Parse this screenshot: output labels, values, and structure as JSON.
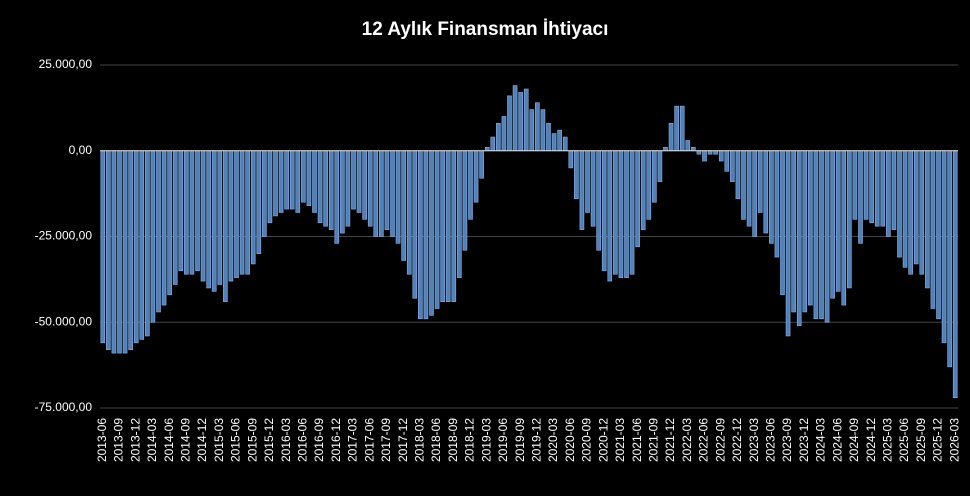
{
  "chart_data": {
    "type": "bar",
    "title": "12 Aylık Finansman İhtiyacı",
    "color": "#4f81bd",
    "grid": true,
    "ylim": [
      -75000,
      25000
    ],
    "yticks": [
      {
        "value": -75000,
        "label": "-75.000,00"
      },
      {
        "value": -50000,
        "label": "-50.000,00"
      },
      {
        "value": -25000,
        "label": "-25.000,00"
      },
      {
        "value": 0,
        "label": "0,00"
      },
      {
        "value": 25000,
        "label": "25.000,00"
      }
    ],
    "categories": [
      "2013-06",
      null,
      null,
      "2013-09",
      null,
      null,
      "2013-12",
      null,
      null,
      "2014-03",
      null,
      null,
      "2014-06",
      null,
      null,
      "2014-09",
      null,
      null,
      "2014-12",
      null,
      null,
      "2015-03",
      null,
      null,
      "2015-06",
      null,
      null,
      "2015-09",
      null,
      null,
      "2015-12",
      null,
      null,
      "2016-03",
      null,
      null,
      "2016-06",
      null,
      null,
      "2016-09",
      null,
      null,
      "2016-12",
      null,
      null,
      "2017-03",
      null,
      null,
      "2017-06",
      null,
      null,
      "2017-09",
      null,
      null,
      "2017-12",
      null,
      null,
      "2018-03",
      null,
      null,
      "2018-06",
      null,
      null,
      "2018-09",
      null,
      null,
      "2018-12",
      null,
      null,
      "2019-03",
      null,
      null,
      "2019-06",
      null,
      null,
      "2019-09",
      null,
      null,
      "2019-12",
      null,
      null,
      "2020-03",
      null,
      null,
      "2020-06",
      null,
      null,
      "2020-09",
      null,
      null,
      "2020-12",
      null,
      null,
      "2021-03",
      null,
      null,
      "2021-06",
      null,
      null,
      "2021-09",
      null,
      null,
      "2021-12",
      null,
      null,
      "2022-03",
      null,
      null,
      "2022-06",
      null,
      null,
      "2022-09",
      null,
      null,
      "2022-12",
      null,
      null,
      "2023-03",
      null,
      null,
      "2023-06",
      null,
      null,
      "2023-09",
      null,
      null,
      "2023-12",
      null,
      null,
      "2024-03",
      null,
      null,
      "2024-06",
      null,
      null,
      "2024-09",
      null,
      null,
      "2024-12",
      null,
      null,
      "2025-03",
      null,
      null,
      "2025-06",
      null,
      null,
      "2025-09",
      null,
      null,
      "2025-12",
      null,
      null,
      "2026-03"
    ],
    "values": [
      -56000,
      -58000,
      -59000,
      -59000,
      -59000,
      -58000,
      -56000,
      -55000,
      -54000,
      -50000,
      -47000,
      -45000,
      -42000,
      -39000,
      -35000,
      -36000,
      -36000,
      -35000,
      -38000,
      -40000,
      -41000,
      -39000,
      -44000,
      -38000,
      -37000,
      -36000,
      -36000,
      -33000,
      -30000,
      -25000,
      -21000,
      -19000,
      -18000,
      -17000,
      -17000,
      -18000,
      -15000,
      -16000,
      -18000,
      -21000,
      -22000,
      -23000,
      -27000,
      -24000,
      -22000,
      -17000,
      -18000,
      -20000,
      -22000,
      -25000,
      -25000,
      -23000,
      -25000,
      -27000,
      -32000,
      -36000,
      -43000,
      -49000,
      -49000,
      -48000,
      -46000,
      -44000,
      -44000,
      -44000,
      -37000,
      -29000,
      -20000,
      -15000,
      -8000,
      1000,
      4000,
      8000,
      10000,
      16000,
      19000,
      17000,
      18000,
      12000,
      14000,
      12000,
      8000,
      5000,
      6000,
      4000,
      -5000,
      -14000,
      -23000,
      -18000,
      -22000,
      -29000,
      -35000,
      -38000,
      -36000,
      -37000,
      -37000,
      -36000,
      -28000,
      -23000,
      -20000,
      -15000,
      -9000,
      1000,
      8000,
      13000,
      13000,
      3000,
      1000,
      -1000,
      -3000,
      -1000,
      -1000,
      -3000,
      -6000,
      -9000,
      -14000,
      -20000,
      -22000,
      -25000,
      -18000,
      -24000,
      -27000,
      -31000,
      -42000,
      -54000,
      -47000,
      -51000,
      -47000,
      -45000,
      -49000,
      -49000,
      -50000,
      -43000,
      -41000,
      -45000,
      -40000,
      -20000,
      -27000,
      -20000,
      -21000,
      -22000,
      -22000,
      -25000,
      -23000,
      -31000,
      -34000,
      -36000,
      -33000,
      -36000,
      -40000,
      -46000,
      -49000,
      -56000,
      -63000,
      -72000
    ]
  }
}
